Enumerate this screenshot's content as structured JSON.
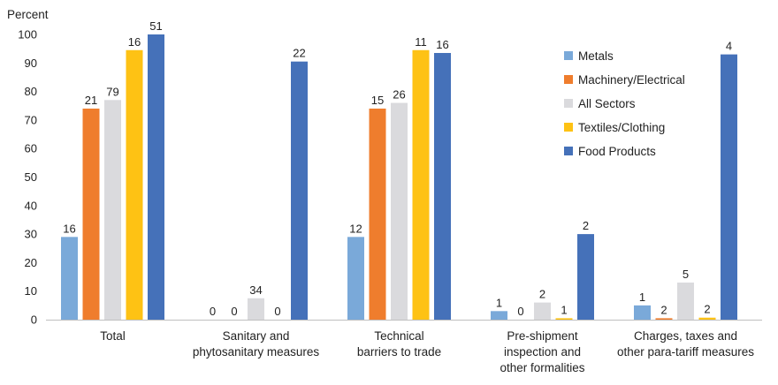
{
  "chart_data": {
    "type": "bar",
    "ylabel": "Percent",
    "ylim": [
      0,
      100
    ],
    "yticks": [
      0,
      10,
      20,
      30,
      40,
      50,
      60,
      70,
      80,
      90,
      100
    ],
    "grid": false,
    "legend_position": "top-right",
    "categories": [
      [
        "Total"
      ],
      [
        "Sanitary and",
        "phytosanitary measures"
      ],
      [
        "Technical",
        "barriers to trade"
      ],
      [
        "Pre-shipment",
        "inspection and",
        "other formalities"
      ],
      [
        "Charges, taxes and",
        "other para-tariff measures"
      ]
    ],
    "series": [
      {
        "name": "Metals",
        "color": "#7aa9d9",
        "values": [
          29,
          0,
          29,
          3,
          5
        ],
        "labels": [
          "16",
          "0",
          "12",
          "1",
          "1"
        ]
      },
      {
        "name": "Machinery/Electrical",
        "color": "#ef7d2d",
        "values": [
          74,
          0,
          74,
          0,
          0.5
        ],
        "labels": [
          "21",
          "0",
          "15",
          "0",
          "2"
        ]
      },
      {
        "name": "All Sectors",
        "color": "#dadadd",
        "values": [
          77,
          7.5,
          76,
          6,
          13
        ],
        "labels": [
          "79",
          "34",
          "26",
          "2",
          "5"
        ]
      },
      {
        "name": "Textiles/Clothing",
        "color": "#fec214",
        "values": [
          94.5,
          0,
          94.5,
          0.5,
          0.7
        ],
        "labels": [
          "16",
          "0",
          "11",
          "1",
          "2"
        ]
      },
      {
        "name": "Food Products",
        "color": "#4571b9",
        "values": [
          100,
          90.5,
          93.5,
          30,
          93
        ],
        "labels": [
          "51",
          "22",
          "16",
          "2",
          "4"
        ]
      }
    ]
  }
}
